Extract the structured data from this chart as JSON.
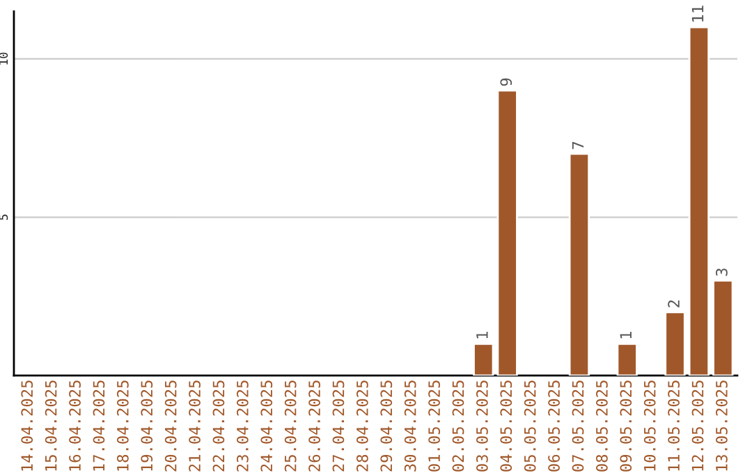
{
  "chart_data": {
    "type": "bar",
    "categories": [
      "14.04.2025",
      "15.04.2025",
      "16.04.2025",
      "17.04.2025",
      "18.04.2025",
      "19.04.2025",
      "20.04.2025",
      "21.04.2025",
      "22.04.2025",
      "23.04.2025",
      "24.04.2025",
      "25.04.2025",
      "26.04.2025",
      "27.04.2025",
      "28.04.2025",
      "29.04.2025",
      "30.04.2025",
      "01.05.2025",
      "02.05.2025",
      "03.05.2025",
      "04.05.2025",
      "05.05.2025",
      "06.05.2025",
      "07.05.2025",
      "08.05.2025",
      "09.05.2025",
      "10.05.2025",
      "11.05.2025",
      "12.05.2025",
      "13.05.2025"
    ],
    "values": [
      null,
      null,
      null,
      null,
      null,
      null,
      null,
      null,
      null,
      null,
      null,
      null,
      null,
      null,
      null,
      null,
      null,
      null,
      null,
      1,
      9,
      null,
      null,
      7,
      null,
      1,
      null,
      2,
      11,
      3
    ],
    "value_labels": [
      null,
      null,
      null,
      null,
      null,
      null,
      null,
      null,
      null,
      null,
      null,
      null,
      null,
      null,
      null,
      null,
      null,
      null,
      null,
      "1",
      "9",
      null,
      null,
      "7",
      null,
      "1",
      null,
      "2",
      "11",
      "3"
    ],
    "color": "#a0582a",
    "ylim": [
      0,
      11.5
    ],
    "yticks": [
      5,
      10
    ],
    "grid": "y"
  }
}
